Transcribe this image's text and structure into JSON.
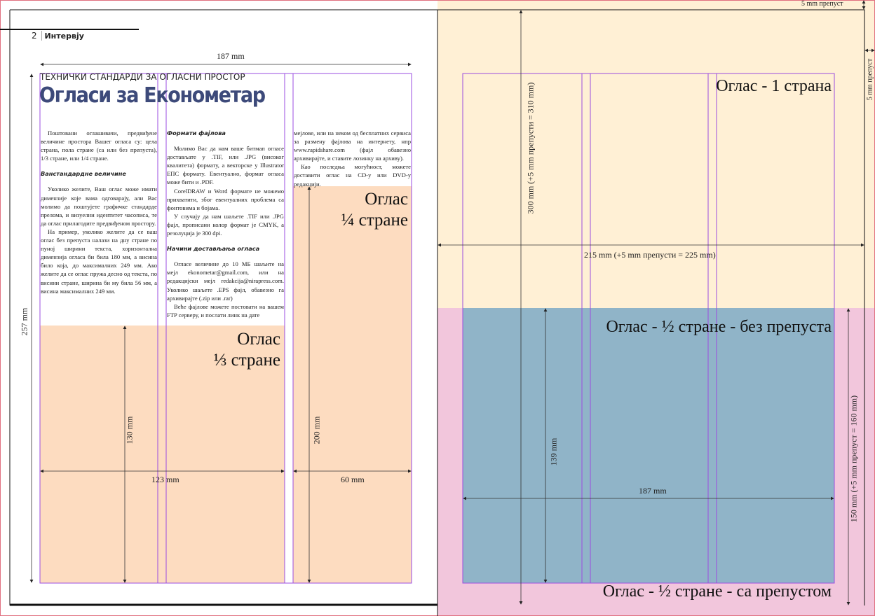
{
  "header": {
    "page_number": "2",
    "section": "Интервју"
  },
  "kicker": "ТЕХНИЧКИ СТАНДАРДИ ЗА ОГЛАСНИ ПРОСТОР",
  "title": "Огласи за Економетар",
  "col1": {
    "p1": "Поштовани оглашивачи, предвиђене величине простора Вашег огласа су: цела страна, пола стране (са или без препуста), 1/3 стране, или 1/4 стране.",
    "h1": "Ванстандардне величине",
    "p2": "Уколико желите, Ваш оглас може имати димензије које вама одговарају, али Вас молимо да поштујете графичке стандарде прелома, и визуелни идентитет часописа, те да оглас прилагодите предвиђеном простору.",
    "p3": "На пример, уколико желите да се ваш оглас без препуста налази на дну стране по пуној ширини текста, хоризонтална димензија огласа би била 180 мм, а висина било која, до максималних 249 мм. Ако желите да се оглас пружа десно од текста, по висини стране, ширина би му била 56 мм, а висина максималних 249 мм."
  },
  "col2": {
    "h1": "Формати фајлова",
    "p1": "Молимо Вас да нам ваше битмап огласе достављате у .TIF, или .JPG (високог квалитета) формату, а векторске у Illustrator ЕПС формату. Евентуално, формат огласа може бити и .PDF.",
    "p2": "CorelDRAW и Word формате не можемо прихватити, због евентуалних проблема са фонтовима и бојама.",
    "p3": "У случају да нам шаљете .TIF или .JPG фајл, прописани колор формат је CMYK, а резолуција је 300 dpi.",
    "h2": "Начини достављања огласа",
    "p4": "Огласе величине до 10 МБ шаљите на мејл ekonometar@gmail.com, или на редакцијски мејл redakcija@nirapress.com. Уколико шаљете .EPS фајл, обавезно га архивирајте (.zip или .rar)",
    "p5": "Веће фајлове можете постовати на вашем FTP серверу, и послати линк на дате"
  },
  "col3": {
    "p1": "мејлове, или на неком од бесплатних сервиса за размену фајлова на интернету, нпр www.rapidshare.com (фајл обавезно архивирајте, и ставите лозинку на архиву).",
    "p2": "Као последња могућност, можете доставити оглас на CD-у или DVD-у редакцији."
  },
  "ads": {
    "third_l1": "Оглас",
    "third_l2": "⅓ стране",
    "quarter_l1": "Оглас",
    "quarter_l2": "¼ стране",
    "full": "Оглас - 1 страна",
    "half_no_bleed": "Оглас - ½ стране - без препуста",
    "half_bleed": "Оглас - ½ стране - са препустом"
  },
  "dims": {
    "w187_top": "187 mm",
    "h257": "257 mm",
    "h130": "130 mm",
    "w123": "123 mm",
    "h200": "200 mm",
    "w60": "60 mm",
    "h300": "300 mm (+5 mm препусти = 310 mm)",
    "w215": "215 mm (+5 mm препусти = 225 mm)",
    "h139": "139 mm",
    "w187_right": "187 mm",
    "h150": "150 mm (+5 mm препуст = 160 mm)",
    "bleed_top": "5 mm препуст",
    "bleed_right": "5 mm препуст"
  },
  "colors": {
    "title": "#3d4a7a",
    "full_page": "#fff0d5",
    "half_bleed": "#f2c6dc",
    "half_no_bleed": "#90b4c8",
    "small_ads": "#fddcc0",
    "guides": "#9b4de0"
  }
}
